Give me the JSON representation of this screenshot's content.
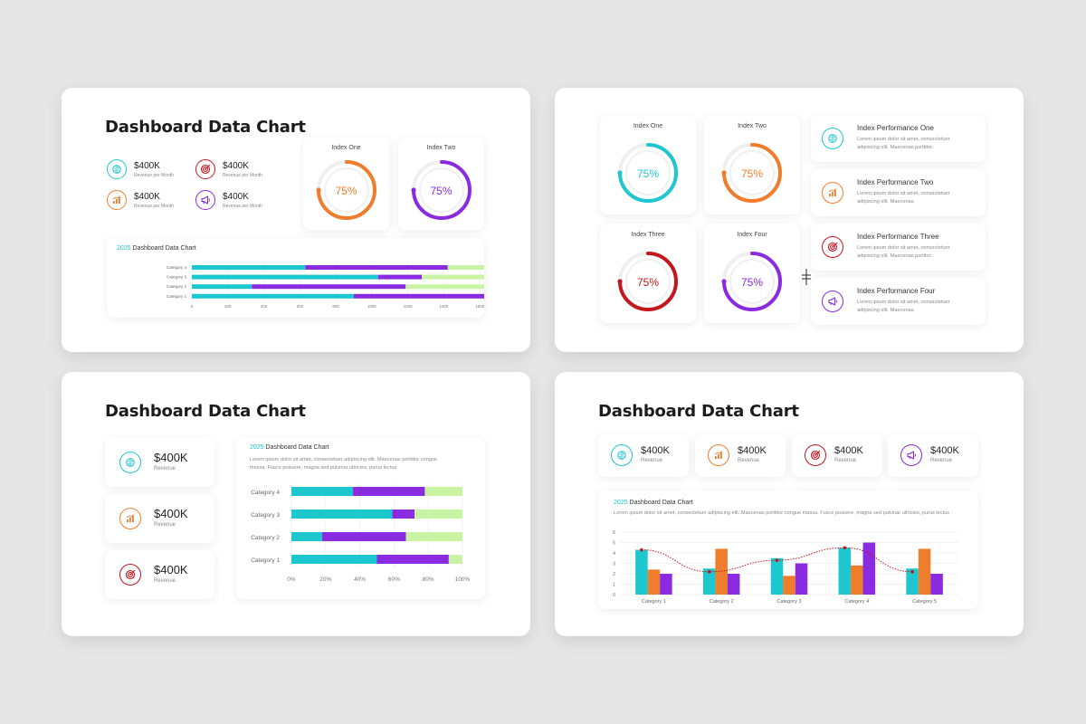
{
  "colors": {
    "cyan": "#1cc7d0",
    "orange": "#ef7d2b",
    "red": "#c4161c",
    "purple": "#8a2be2",
    "green": "#c9f4a4",
    "bg": "#e6e6e6"
  },
  "slide1": {
    "title": "Dashboard Data Chart",
    "kpis": [
      {
        "value": "$400K",
        "sub": "Revenue per Month",
        "icon": "brain-icon",
        "color": "#1cc7d0"
      },
      {
        "value": "$400K",
        "sub": "Revenue per Month",
        "icon": "target-icon",
        "color": "#c4161c"
      },
      {
        "value": "$400K",
        "sub": "Revenue per Month",
        "icon": "bar-chart-icon",
        "color": "#ef7d2b"
      },
      {
        "value": "$400K",
        "sub": "Revenue per Month",
        "icon": "megaphone-icon",
        "color": "#8a2be2"
      }
    ],
    "index_cards": [
      {
        "label": "Index One",
        "percent": "75%",
        "value": 75,
        "color": "#ef7d2b"
      },
      {
        "label": "Index Two",
        "percent": "75%",
        "value": 75,
        "color": "#8a2be2"
      }
    ],
    "chart_title_year": "2025",
    "chart_title": "Dashboard Data Chart"
  },
  "slide2": {
    "index_cards": [
      {
        "label": "Index One",
        "percent": "75%",
        "value": 75,
        "color": "#1cc7d0"
      },
      {
        "label": "Index Two",
        "percent": "75%",
        "value": 75,
        "color": "#ef7d2b"
      },
      {
        "label": "Index Three",
        "percent": "75%",
        "value": 75,
        "color": "#c4161c"
      },
      {
        "label": "Index Four",
        "percent": "75%",
        "value": 75,
        "color": "#8a2be2"
      }
    ],
    "performance": [
      {
        "title": "Index Performance One",
        "desc1": "Lorem ipsum dolor sit amet, consectetuer",
        "desc2": "adipiscing elit. Maecenas porttitor.",
        "icon": "brain-icon",
        "color": "#1cc7d0"
      },
      {
        "title": "Index Performance Two",
        "desc1": "Lorem ipsum dolor sit amet, consectetuer",
        "desc2": "adipiscing elit. Maecenas.",
        "icon": "bar-chart-icon",
        "color": "#ef7d2b"
      },
      {
        "title": "Index Performance Three",
        "desc1": "Lorem ipsum dolor sit amet, consectetuer",
        "desc2": "adipiscing elit. Maecenas portitor.",
        "icon": "target-icon",
        "color": "#c4161c"
      },
      {
        "title": "Index Performance Four",
        "desc1": "Lorem ipsum dolor sit amet, consectetuer",
        "desc2": "adipiscing elit. Maecenas.",
        "icon": "megaphone-icon",
        "color": "#8a2be2"
      }
    ]
  },
  "slide3": {
    "title": "Dashboard Data Chart",
    "kpis": [
      {
        "value": "$400K",
        "sub": "Revenue",
        "icon": "brain-icon",
        "color": "#1cc7d0"
      },
      {
        "value": "$400K",
        "sub": "Revenue",
        "icon": "bar-chart-icon",
        "color": "#ef7d2b"
      },
      {
        "value": "$400K",
        "sub": "Revenue",
        "icon": "target-icon",
        "color": "#c4161c"
      }
    ],
    "chart_title_year": "2025",
    "chart_title": "Dashboard Data Chart",
    "desc1": "Lorem ipsum dolor sit amet, consectetuer adipiscing elit. Maecenas porttitor congue",
    "desc2": "massa. Fusce posuere, magna sed pulvinar ultricies, purus lectus"
  },
  "slide4": {
    "title": "Dashboard Data Chart",
    "kpis": [
      {
        "value": "$400K",
        "sub": "Revenue",
        "icon": "brain-icon",
        "color": "#1cc7d0"
      },
      {
        "value": "$400K",
        "sub": "Revenue",
        "icon": "bar-chart-icon",
        "color": "#ef7d2b"
      },
      {
        "value": "$400K",
        "sub": "Revenue",
        "icon": "target-icon",
        "color": "#c4161c"
      },
      {
        "value": "$400K",
        "sub": "Revenue",
        "icon": "megaphone-icon",
        "color": "#8a2be2"
      }
    ],
    "chart_title_year": "2025",
    "chart_title": "Dashboard Data Chart",
    "desc": "Lorem ipsum dolor sit amet, consectetuer adipiscing elit. Maecenas porttitor congue massa. Fusce posuere, magna sed pulvinar ultricies, purus lectus"
  },
  "chart_data": [
    {
      "type": "bar",
      "orientation": "horizontal",
      "stacked": true,
      "title": "2025 Dashboard Data Chart",
      "categories": [
        "Category 4",
        "Category 3",
        "Category 2",
        "Category 1"
      ],
      "series": [
        {
          "values": [
            700,
            1150,
            370,
            1000
          ],
          "color": "#1cc7d0"
        },
        {
          "values": [
            880,
            270,
            950,
            830
          ],
          "color": "#8a2be2"
        },
        {
          "values": [
            420,
            580,
            680,
            170
          ],
          "color": "#c9f4a4"
        }
      ],
      "ticks": [
        "0",
        "200",
        "400",
        "600",
        "800",
        "1000",
        "1200",
        "1400",
        "1600",
        "1800"
      ],
      "xlim": [
        0,
        2000
      ],
      "grid": true
    },
    {
      "type": "bar",
      "orientation": "horizontal",
      "stacked": true,
      "title": "2025 Dashboard Data Chart",
      "categories": [
        "Category 4",
        "Category 3",
        "Category 2",
        "Category 1"
      ],
      "series": [
        {
          "values": [
            36,
            59,
            18,
            50
          ],
          "color": "#1cc7d0"
        },
        {
          "values": [
            42,
            13,
            49,
            42
          ],
          "color": "#8a2be2"
        },
        {
          "values": [
            22,
            28,
            33,
            8
          ],
          "color": "#c9f4a4"
        }
      ],
      "ticks": [
        "0%",
        "20%",
        "40%",
        "60%",
        "80%",
        "100%"
      ],
      "xlim": [
        0,
        100
      ],
      "grid": true
    },
    {
      "type": "bar",
      "title": "2025 Dashboard Data Chart",
      "categories": [
        "Category 1",
        "Category 2",
        "Category 3",
        "Category 4",
        "Category 5"
      ],
      "series": [
        {
          "values": [
            4.3,
            2.5,
            3.5,
            4.5,
            2.5
          ],
          "color": "#1cc7d0"
        },
        {
          "values": [
            2.4,
            4.4,
            1.8,
            2.8,
            4.4
          ],
          "color": "#ef7d2b"
        },
        {
          "values": [
            2.0,
            2.0,
            3.0,
            5.0,
            2.0
          ],
          "color": "#8a2be2"
        }
      ],
      "line": {
        "values": [
          4.3,
          2.2,
          3.3,
          4.5,
          2.2
        ],
        "color": "#c4161c",
        "style": "dotted"
      },
      "yticks": [
        "0",
        "1",
        "2",
        "3",
        "4",
        "5",
        "6"
      ],
      "ylim": [
        0,
        6
      ],
      "grid": true
    }
  ]
}
